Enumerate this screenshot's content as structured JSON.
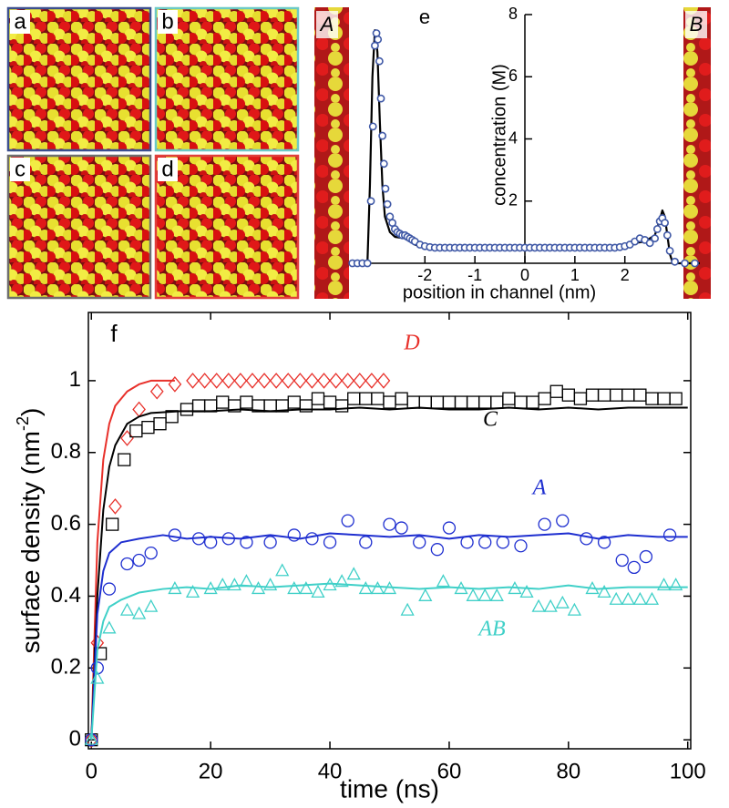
{
  "panels": [
    {
      "label": "a",
      "frame_color": "#3b4f8f"
    },
    {
      "label": "b",
      "frame_color": "#6cc9c6"
    },
    {
      "label": "c",
      "frame_color": "#6e6e6e"
    },
    {
      "label": "d",
      "frame_color": "#e0403c"
    }
  ],
  "strips": [
    "A",
    "B"
  ],
  "chart_data": [
    {
      "type": "scatter",
      "label": "e",
      "xlabel": "position in channel (nm)",
      "ylabel": "concentration (M)",
      "xlim": [
        -3.5,
        3.5
      ],
      "ylim": [
        0,
        8
      ],
      "xticks": [
        -2,
        -1,
        0,
        1,
        2
      ],
      "yticks": [
        2,
        4,
        6,
        8
      ],
      "axes_cross_at_zero": true,
      "series": [
        {
          "color": "#3f58a6",
          "marker": "circle",
          "line_color": "#000000",
          "x": [
            -3.45,
            -3.35,
            -3.25,
            -3.15,
            -3.08,
            -3.04,
            -3.0,
            -2.97,
            -2.94,
            -2.91,
            -2.88,
            -2.85,
            -2.82,
            -2.79,
            -2.75,
            -2.7,
            -2.65,
            -2.6,
            -2.55,
            -2.5,
            -2.45,
            -2.4,
            -2.35,
            -2.3,
            -2.25,
            -2.2,
            -2.1,
            -2.0,
            -1.9,
            -1.8,
            -1.7,
            -1.6,
            -1.5,
            -1.4,
            -1.3,
            -1.2,
            -1.1,
            -1.0,
            -0.9,
            -0.8,
            -0.7,
            -0.6,
            -0.5,
            -0.4,
            -0.3,
            -0.2,
            -0.1,
            0,
            0.1,
            0.2,
            0.3,
            0.4,
            0.5,
            0.6,
            0.7,
            0.8,
            0.9,
            1.0,
            1.1,
            1.2,
            1.3,
            1.4,
            1.5,
            1.6,
            1.7,
            1.8,
            1.9,
            2.0,
            2.1,
            2.2,
            2.3,
            2.4,
            2.5,
            2.6,
            2.65,
            2.7,
            2.75,
            2.8,
            2.85,
            2.9,
            3.0,
            3.2,
            3.4
          ],
          "values": [
            0,
            0,
            0,
            0,
            2.0,
            4.4,
            7.0,
            7.4,
            7.2,
            6.5,
            5.3,
            4.1,
            3.2,
            2.4,
            1.9,
            1.5,
            1.3,
            1.1,
            1.0,
            0.95,
            0.9,
            0.9,
            0.85,
            0.8,
            0.75,
            0.7,
            0.6,
            0.55,
            0.52,
            0.5,
            0.5,
            0.5,
            0.5,
            0.5,
            0.5,
            0.5,
            0.5,
            0.5,
            0.5,
            0.5,
            0.5,
            0.5,
            0.5,
            0.5,
            0.5,
            0.5,
            0.5,
            0.5,
            0.5,
            0.5,
            0.5,
            0.5,
            0.5,
            0.5,
            0.5,
            0.5,
            0.5,
            0.5,
            0.5,
            0.5,
            0.5,
            0.5,
            0.5,
            0.5,
            0.5,
            0.5,
            0.52,
            0.55,
            0.6,
            0.7,
            0.8,
            0.75,
            0.65,
            0.8,
            1.1,
            1.35,
            1.45,
            1.3,
            0.9,
            0.4,
            0.05,
            0,
            0
          ],
          "line_x": [
            -3.5,
            -3.15,
            -3.1,
            -3.05,
            -3.0,
            -2.95,
            -2.9,
            -2.85,
            -2.8,
            -2.7,
            -2.6,
            -2.4,
            -2.2,
            -2.0,
            2.0,
            2.2,
            2.4,
            2.6,
            2.7,
            2.75,
            2.8,
            2.85,
            2.9,
            2.95,
            3.0,
            3.5
          ],
          "line_values": [
            0,
            0,
            2.5,
            6.0,
            7.5,
            6.8,
            4.5,
            2.5,
            1.5,
            1.0,
            0.85,
            0.8,
            0.6,
            0.5,
            0.5,
            0.65,
            0.7,
            0.9,
            1.4,
            1.7,
            1.5,
            0.9,
            0.3,
            0.05,
            0,
            0
          ]
        }
      ]
    },
    {
      "type": "scatter",
      "label": "f",
      "xlabel": "time (ns)",
      "ylabel": [
        "surface density (nm",
        "-2",
        ")"
      ],
      "xlim": [
        -0.5,
        100.5
      ],
      "ylim": [
        -0.025,
        1.19
      ],
      "xticks": [
        0,
        20,
        40,
        60,
        80,
        100
      ],
      "yticks": [
        0,
        0.2,
        0.4,
        0.6,
        0.8,
        1
      ],
      "series": [
        {
          "name": "D",
          "color": "#e8302a",
          "marker": "diamond",
          "line_color": "#e8302a",
          "x": [
            0,
            1,
            4,
            6,
            8,
            11,
            14,
            17,
            19,
            21,
            23,
            25,
            27,
            29,
            31,
            33,
            35,
            37,
            39,
            41,
            43,
            45,
            47,
            49
          ],
          "values": [
            0,
            0.27,
            0.65,
            0.84,
            0.92,
            0.97,
            0.99,
            1,
            1,
            1,
            1,
            1,
            1,
            1,
            1,
            1,
            1,
            1,
            1,
            1,
            1,
            1,
            1,
            1
          ],
          "line_x": [
            0,
            1,
            2,
            3,
            4,
            6,
            8,
            10,
            12,
            14
          ],
          "line_values": [
            0,
            0.55,
            0.78,
            0.88,
            0.93,
            0.97,
            0.99,
            1,
            1,
            1
          ]
        },
        {
          "name": "C",
          "color": "#000000",
          "marker": "square",
          "line_color": "#000000",
          "x": [
            0,
            1.5,
            3.5,
            5.5,
            7.5,
            9.5,
            11.5,
            13.5,
            16,
            18,
            20,
            22,
            24,
            26,
            28,
            30,
            32,
            34,
            36,
            38,
            40,
            42,
            44,
            46,
            48,
            50,
            52,
            54,
            56,
            58,
            60,
            62,
            64,
            66,
            68,
            70,
            72,
            74,
            76,
            78,
            80,
            82,
            84,
            86,
            88,
            90,
            92,
            94,
            96,
            98
          ],
          "values": [
            0,
            0.24,
            0.6,
            0.78,
            0.86,
            0.87,
            0.88,
            0.9,
            0.92,
            0.93,
            0.93,
            0.94,
            0.93,
            0.94,
            0.93,
            0.93,
            0.93,
            0.94,
            0.93,
            0.95,
            0.94,
            0.93,
            0.95,
            0.95,
            0.95,
            0.94,
            0.95,
            0.94,
            0.94,
            0.94,
            0.94,
            0.94,
            0.94,
            0.94,
            0.94,
            0.95,
            0.94,
            0.94,
            0.95,
            0.97,
            0.96,
            0.95,
            0.96,
            0.96,
            0.96,
            0.96,
            0.96,
            0.95,
            0.95,
            0.95
          ],
          "line_x": [
            0,
            1,
            2,
            3,
            4,
            6,
            8,
            10,
            15,
            20,
            25,
            30,
            35,
            40,
            45,
            50,
            55,
            60,
            65,
            70,
            75,
            80,
            85,
            90,
            95,
            100
          ],
          "line_values": [
            0,
            0.4,
            0.64,
            0.76,
            0.82,
            0.88,
            0.9,
            0.91,
            0.915,
            0.915,
            0.92,
            0.915,
            0.92,
            0.92,
            0.925,
            0.92,
            0.925,
            0.92,
            0.92,
            0.925,
            0.92,
            0.925,
            0.92,
            0.925,
            0.925,
            0.925
          ]
        },
        {
          "name": "A",
          "color": "#1f2fd0",
          "marker": "circle",
          "line_color": "#1f2fd0",
          "x": [
            0,
            1,
            3,
            6,
            8,
            10,
            14,
            18,
            20,
            23,
            26,
            30,
            34,
            37,
            40,
            43,
            46,
            50,
            52,
            55,
            58,
            60,
            63,
            66,
            69,
            72,
            76,
            79,
            83,
            86,
            89,
            91,
            93,
            97
          ],
          "values": [
            0,
            0.2,
            0.42,
            0.49,
            0.5,
            0.52,
            0.57,
            0.56,
            0.55,
            0.56,
            0.55,
            0.55,
            0.57,
            0.56,
            0.55,
            0.61,
            0.55,
            0.6,
            0.59,
            0.55,
            0.53,
            0.59,
            0.55,
            0.55,
            0.55,
            0.54,
            0.6,
            0.61,
            0.56,
            0.55,
            0.5,
            0.48,
            0.51,
            0.57
          ],
          "line_x": [
            0,
            1,
            2,
            3,
            5,
            8,
            12,
            16,
            20,
            25,
            30,
            35,
            40,
            45,
            50,
            55,
            60,
            65,
            70,
            75,
            80,
            85,
            90,
            95,
            100
          ],
          "line_values": [
            0,
            0.35,
            0.47,
            0.52,
            0.55,
            0.56,
            0.57,
            0.56,
            0.565,
            0.56,
            0.57,
            0.56,
            0.575,
            0.57,
            0.565,
            0.57,
            0.56,
            0.57,
            0.565,
            0.57,
            0.575,
            0.56,
            0.57,
            0.565,
            0.565
          ]
        },
        {
          "name": "AB",
          "color": "#40d0c8",
          "marker": "triangle",
          "line_color": "#40d0c8",
          "x": [
            0,
            1,
            3,
            6,
            8,
            10,
            14,
            17,
            20,
            22,
            24,
            26,
            28,
            30,
            32,
            34,
            36,
            38,
            40,
            42,
            44,
            46,
            48,
            50,
            53,
            56,
            59,
            62,
            64,
            66,
            68,
            71,
            73,
            75,
            77,
            79,
            81,
            84,
            86,
            88,
            90,
            92,
            94,
            96,
            98
          ],
          "values": [
            0,
            0.17,
            0.31,
            0.36,
            0.35,
            0.37,
            0.42,
            0.41,
            0.42,
            0.43,
            0.43,
            0.44,
            0.42,
            0.43,
            0.47,
            0.42,
            0.42,
            0.41,
            0.43,
            0.44,
            0.46,
            0.42,
            0.42,
            0.42,
            0.36,
            0.4,
            0.44,
            0.42,
            0.4,
            0.4,
            0.4,
            0.42,
            0.41,
            0.37,
            0.37,
            0.38,
            0.36,
            0.42,
            0.41,
            0.39,
            0.39,
            0.39,
            0.39,
            0.43,
            0.43
          ],
          "line_x": [
            0,
            1,
            2,
            3,
            5,
            8,
            12,
            16,
            20,
            25,
            30,
            35,
            40,
            45,
            50,
            55,
            60,
            65,
            70,
            75,
            80,
            85,
            90,
            95,
            100
          ],
          "line_values": [
            0,
            0.25,
            0.33,
            0.37,
            0.39,
            0.41,
            0.42,
            0.425,
            0.42,
            0.43,
            0.425,
            0.43,
            0.435,
            0.43,
            0.425,
            0.42,
            0.425,
            0.42,
            0.425,
            0.42,
            0.43,
            0.42,
            0.425,
            0.425,
            0.425
          ]
        }
      ]
    }
  ]
}
